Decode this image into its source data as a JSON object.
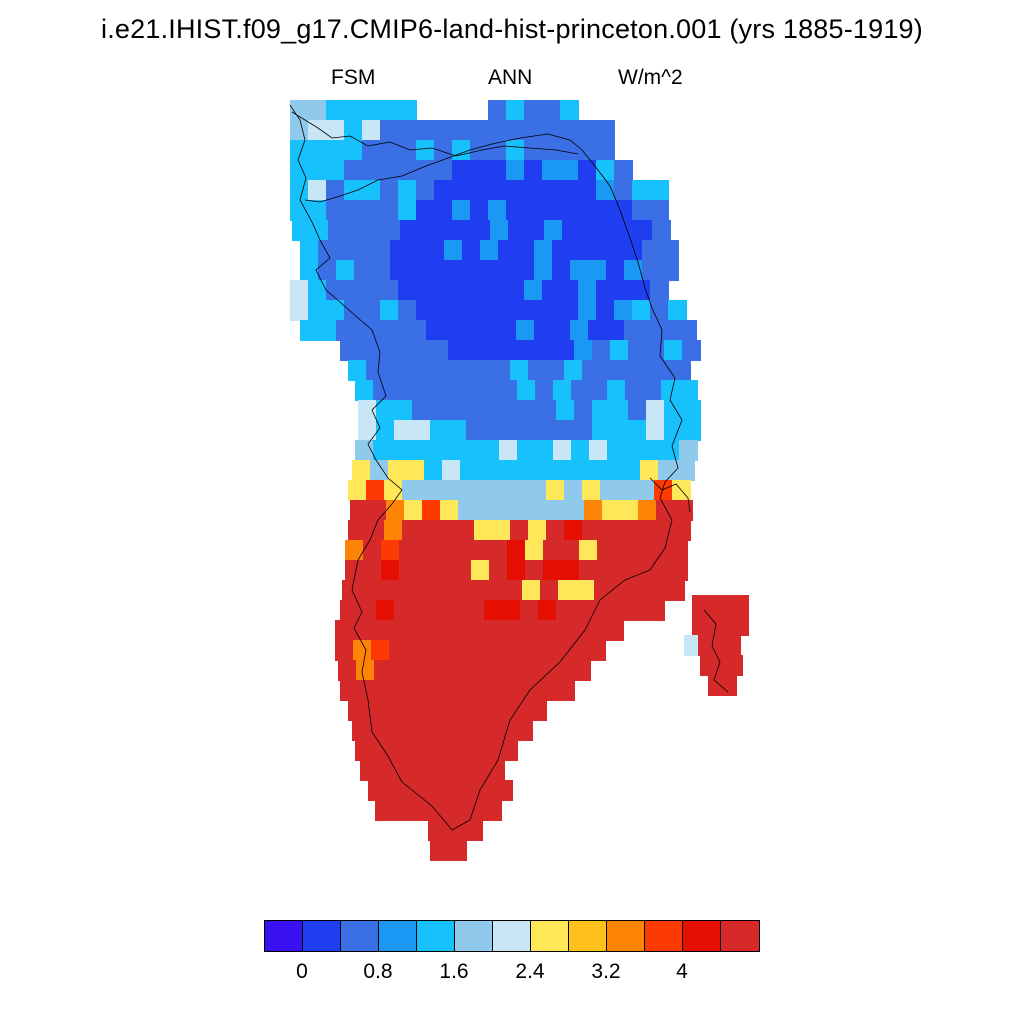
{
  "title": "i.e21.IHIST.f09_g17.CMIP6-land-hist-princeton.001 (yrs 1885-1919)",
  "left_string": "FSM",
  "center_string": "ANN",
  "right_string": "W/m^2",
  "colorbar": {
    "colors": [
      "#3a12f2",
      "#1f3ef0",
      "#3a6fe6",
      "#1a98f4",
      "#17c1fb",
      "#8fcaec",
      "#c9e6f7",
      "#fee85a",
      "#fec01c",
      "#fe8408",
      "#fe3a04",
      "#e60f04",
      "#d62a2a"
    ],
    "tick_labels": [
      "0",
      "0.8",
      "1.6",
      "2.4",
      "3.2",
      "4"
    ]
  },
  "map": {
    "region": "Greenland",
    "variable": "FSM",
    "season": "ANN",
    "units": "W/m^2",
    "pattern": "Negative to low values (0–1.6) over the northern and central interior, increasing to >4 along the southern half and the coastal margins."
  }
}
